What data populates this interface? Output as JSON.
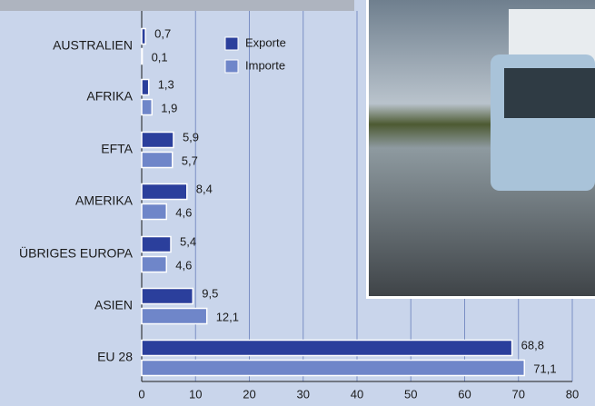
{
  "chart_data": {
    "type": "bar",
    "orientation": "horizontal",
    "categories": [
      "AUSTRALIEN",
      "AFRIKA",
      "EFTA",
      "AMERIKA",
      "ÜBRIGES EUROPA",
      "ASIEN",
      "EU 28"
    ],
    "series": [
      {
        "name": "Exporte",
        "color": "#2b3f9c",
        "values": [
          0.7,
          1.3,
          5.9,
          8.4,
          5.4,
          9.5,
          68.8
        ],
        "value_labels": [
          "0,7",
          "1,3",
          "5,9",
          "8,4",
          "5,4",
          "9,5",
          "68,8"
        ]
      },
      {
        "name": "Importe",
        "color": "#6f86c9",
        "values": [
          0.1,
          1.9,
          5.7,
          4.6,
          4.6,
          12.1,
          71.1
        ],
        "value_labels": [
          "0,1",
          "1,9",
          "5,7",
          "4,6",
          "4,6",
          "12,1",
          "71,1"
        ]
      }
    ],
    "xlim": [
      0,
      80
    ],
    "xticks": [
      0,
      10,
      20,
      30,
      40,
      50,
      60,
      70,
      80
    ],
    "grid": true,
    "legend": "top"
  }
}
